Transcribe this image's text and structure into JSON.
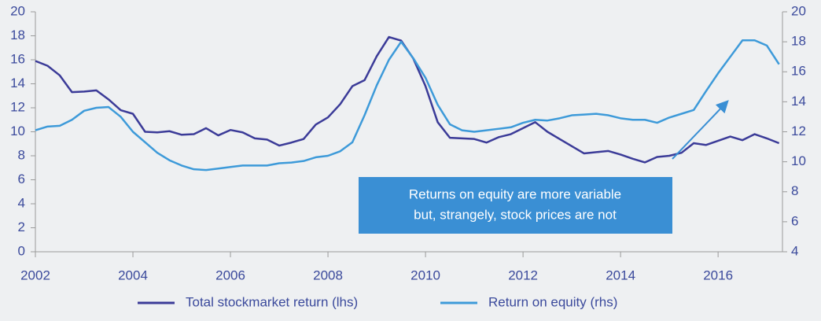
{
  "chart_data": {
    "type": "line",
    "x": [
      2002,
      2002.25,
      2002.5,
      2002.75,
      2003,
      2003.25,
      2003.5,
      2003.75,
      2004,
      2004.25,
      2004.5,
      2004.75,
      2005,
      2005.25,
      2005.5,
      2005.75,
      2006,
      2006.25,
      2006.5,
      2006.75,
      2007,
      2007.25,
      2007.5,
      2007.75,
      2008,
      2008.25,
      2008.5,
      2008.75,
      2009,
      2009.25,
      2009.5,
      2009.75,
      2010,
      2010.25,
      2010.5,
      2010.75,
      2011,
      2011.25,
      2011.5,
      2011.75,
      2012,
      2012.25,
      2012.5,
      2012.75,
      2013,
      2013.25,
      2013.5,
      2013.75,
      2014,
      2014.25,
      2014.5,
      2014.75,
      2015,
      2015.25,
      2015.5,
      2015.75,
      2016,
      2016.25,
      2016.5,
      2016.75,
      2017,
      2017.25
    ],
    "series": [
      {
        "name": "Total stockmarket return (lhs)",
        "color": "#3b3b98",
        "axis": "y",
        "values": [
          15.9,
          15.5,
          14.7,
          13.3,
          13.35,
          13.45,
          12.7,
          11.8,
          11.5,
          10.0,
          9.95,
          10.05,
          9.75,
          9.8,
          10.3,
          9.7,
          10.15,
          9.95,
          9.45,
          9.35,
          8.85,
          9.1,
          9.4,
          10.6,
          11.2,
          12.3,
          13.8,
          14.3,
          16.3,
          17.9,
          17.6,
          16.1,
          13.8,
          10.8,
          9.5,
          9.45,
          9.4,
          9.1,
          9.55,
          9.8,
          10.3,
          10.8,
          10.0,
          9.4,
          8.8,
          8.2,
          8.3,
          8.4,
          8.1,
          7.75,
          7.45,
          7.9,
          8.0,
          8.25,
          9.05,
          8.9,
          9.25,
          9.6,
          9.3,
          9.8,
          9.45,
          9.05
        ]
      },
      {
        "name": "Return on equity (rhs)",
        "color": "#3d9ad9",
        "axis": "y2",
        "values": [
          12.1,
          12.35,
          12.4,
          12.8,
          13.4,
          13.6,
          13.65,
          13.0,
          12.0,
          11.3,
          10.6,
          10.1,
          9.75,
          9.5,
          9.45,
          9.55,
          9.65,
          9.75,
          9.75,
          9.75,
          9.9,
          9.95,
          10.05,
          10.3,
          10.4,
          10.7,
          11.3,
          13.1,
          15.1,
          16.8,
          18.0,
          16.9,
          15.6,
          13.8,
          12.5,
          12.1,
          12.0,
          12.1,
          12.2,
          12.3,
          12.6,
          12.8,
          12.75,
          12.9,
          13.1,
          13.15,
          13.2,
          13.1,
          12.9,
          12.8,
          12.8,
          12.6,
          12.95,
          13.2,
          13.45,
          14.7,
          15.9,
          17.0,
          18.1,
          18.1,
          17.75,
          16.5
        ]
      }
    ],
    "xlim": [
      2002,
      2017.32
    ],
    "xticks": [
      2002,
      2004,
      2006,
      2008,
      2010,
      2012,
      2014,
      2016
    ],
    "ylim": [
      0,
      20
    ],
    "yticks": [
      0,
      2,
      4,
      6,
      8,
      10,
      12,
      14,
      16,
      18,
      20
    ],
    "y2lim": [
      4,
      20
    ],
    "y2ticks": [
      4,
      6,
      8,
      10,
      12,
      14,
      16,
      18,
      20
    ],
    "annotation": [
      "Returns on equity are more variable",
      "but, strangely, stock prices are not"
    ],
    "annotation_color": "#3a8fd4",
    "legend": "bottom"
  }
}
